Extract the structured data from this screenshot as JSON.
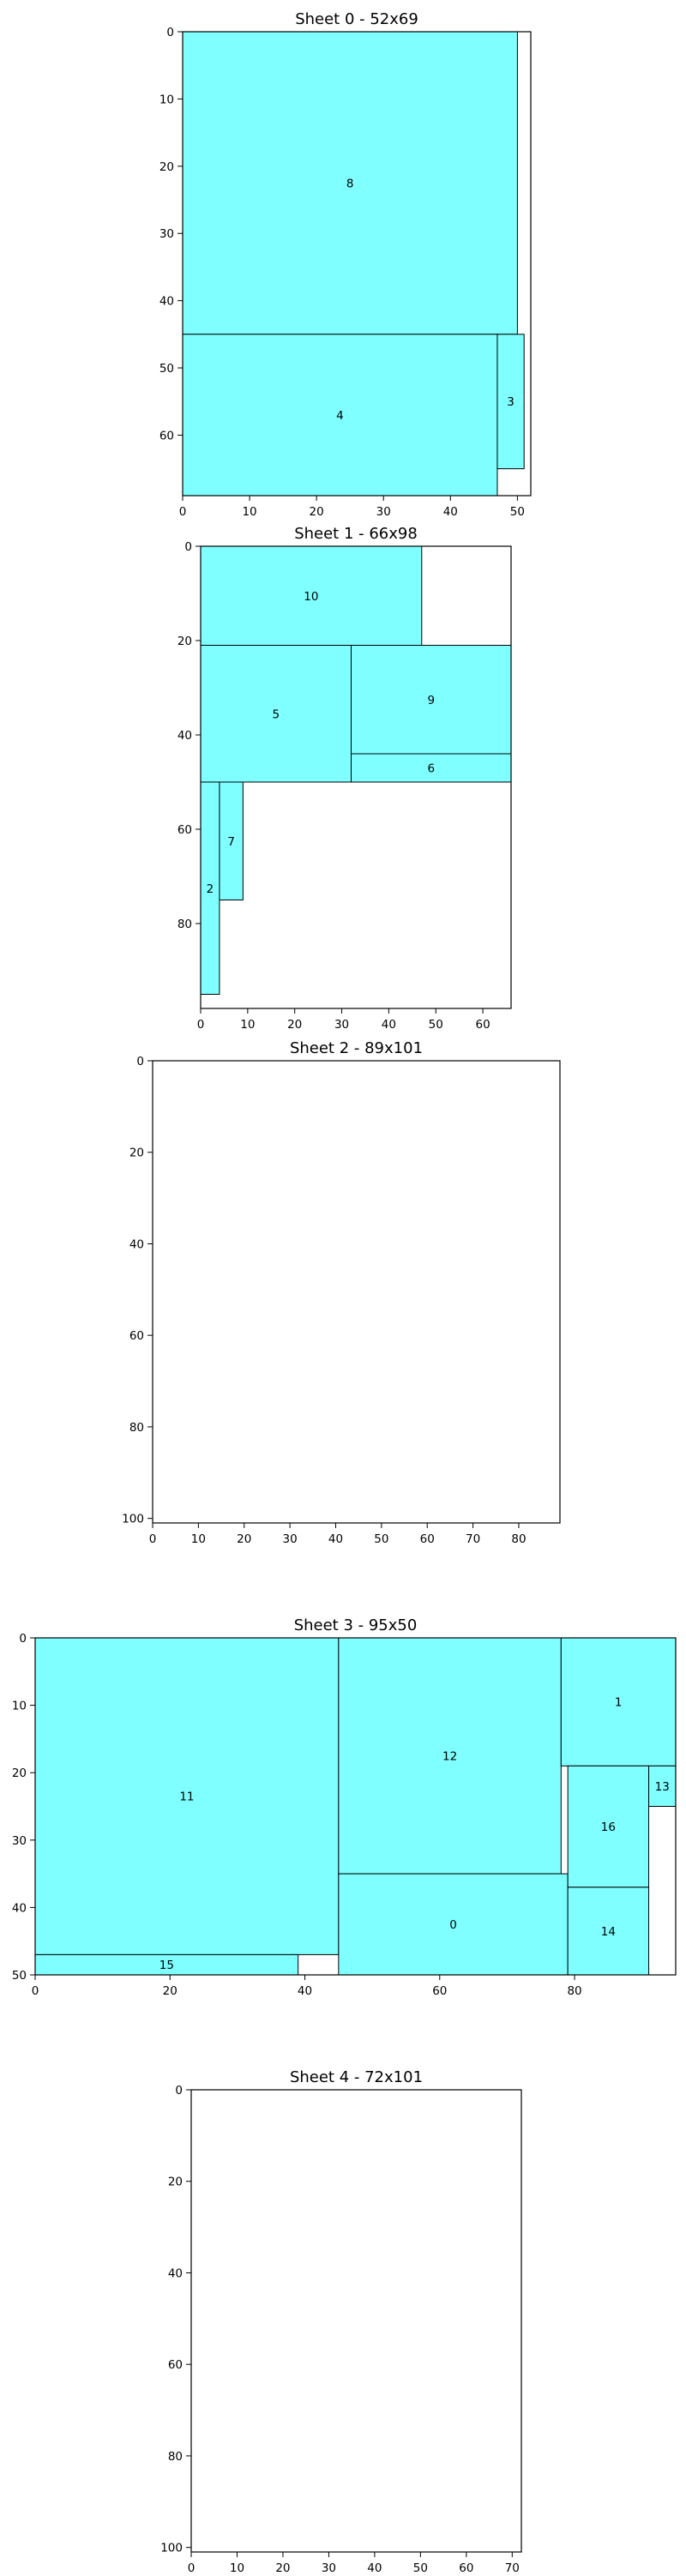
{
  "colors": {
    "piece_fill": "#7fffff",
    "edge": "#000000",
    "background": "#ffffff"
  },
  "chart_data": [
    {
      "type": "sheet-layout",
      "title": "Sheet 0 - 52x69",
      "width": 52,
      "height": 69,
      "xlim": [
        0,
        52
      ],
      "ylim": [
        0,
        69
      ],
      "y_inverted": true,
      "xticks": [
        0,
        10,
        20,
        30,
        40,
        50
      ],
      "yticks": [
        0,
        10,
        20,
        30,
        40,
        50,
        60
      ],
      "pieces": [
        {
          "id": "8",
          "x": 0,
          "y": 0,
          "w": 50,
          "h": 45
        },
        {
          "id": "4",
          "x": 0,
          "y": 45,
          "w": 47,
          "h": 24
        },
        {
          "id": "3",
          "x": 47,
          "y": 45,
          "w": 4,
          "h": 20
        }
      ]
    },
    {
      "type": "sheet-layout",
      "title": "Sheet 1 - 66x98",
      "width": 66,
      "height": 98,
      "xlim": [
        0,
        66
      ],
      "ylim": [
        0,
        98
      ],
      "y_inverted": true,
      "xticks": [
        0,
        10,
        20,
        30,
        40,
        50,
        60
      ],
      "yticks": [
        0,
        20,
        40,
        60,
        80
      ],
      "pieces": [
        {
          "id": "10",
          "x": 0,
          "y": 0,
          "w": 47,
          "h": 21
        },
        {
          "id": "5",
          "x": 0,
          "y": 21,
          "w": 32,
          "h": 29
        },
        {
          "id": "9",
          "x": 32,
          "y": 21,
          "w": 34,
          "h": 23
        },
        {
          "id": "6",
          "x": 32,
          "y": 44,
          "w": 34,
          "h": 6
        },
        {
          "id": "2",
          "x": 0,
          "y": 50,
          "w": 4,
          "h": 45
        },
        {
          "id": "7",
          "x": 4,
          "y": 50,
          "w": 5,
          "h": 25
        }
      ]
    },
    {
      "type": "sheet-layout",
      "title": "Sheet 2 - 89x101",
      "width": 89,
      "height": 101,
      "xlim": [
        0,
        89
      ],
      "ylim": [
        0,
        101
      ],
      "y_inverted": true,
      "xticks": [
        0,
        10,
        20,
        30,
        40,
        50,
        60,
        70,
        80
      ],
      "yticks": [
        0,
        20,
        40,
        60,
        80,
        100
      ],
      "pieces": []
    },
    {
      "type": "sheet-layout",
      "title": "Sheet 3 - 95x50",
      "width": 95,
      "height": 50,
      "xlim": [
        0,
        95
      ],
      "ylim": [
        0,
        50
      ],
      "y_inverted": true,
      "xticks": [
        0,
        20,
        40,
        60,
        80
      ],
      "yticks": [
        0,
        10,
        20,
        30,
        40,
        50
      ],
      "pieces": [
        {
          "id": "11",
          "x": 0,
          "y": 0,
          "w": 45,
          "h": 47
        },
        {
          "id": "15",
          "x": 0,
          "y": 47,
          "w": 39,
          "h": 3
        },
        {
          "id": "12",
          "x": 45,
          "y": 0,
          "w": 33,
          "h": 35
        },
        {
          "id": "0",
          "x": 45,
          "y": 35,
          "w": 34,
          "h": 15
        },
        {
          "id": "1",
          "x": 78,
          "y": 0,
          "w": 17,
          "h": 19
        },
        {
          "id": "16",
          "x": 79,
          "y": 19,
          "w": 12,
          "h": 18
        },
        {
          "id": "13",
          "x": 91,
          "y": 19,
          "w": 4,
          "h": 6
        },
        {
          "id": "14",
          "x": 79,
          "y": 37,
          "w": 12,
          "h": 13
        }
      ]
    },
    {
      "type": "sheet-layout",
      "title": "Sheet 4 - 72x101",
      "width": 72,
      "height": 101,
      "xlim": [
        0,
        72
      ],
      "ylim": [
        0,
        101
      ],
      "y_inverted": true,
      "xticks": [
        0,
        10,
        20,
        30,
        40,
        50,
        60,
        70
      ],
      "yticks": [
        0,
        20,
        40,
        60,
        80,
        100
      ],
      "pieces": []
    }
  ]
}
